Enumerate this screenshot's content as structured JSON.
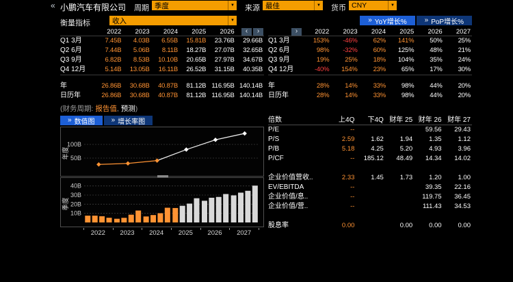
{
  "icons": {
    "back": "«",
    "dropdown_arrow": "▼",
    "chevron_left": "‹",
    "chevron_right": "›",
    "double_chevron": "»"
  },
  "colors": {
    "actual": "#ff9333",
    "negative": "#ff4040",
    "estimate": "#ffffff",
    "amber": "#f59d00",
    "blue_active": "#1d5fd6",
    "blue_inactive": "#0e3677",
    "nav_button_bg": "#3c4f63"
  },
  "header": {
    "company": "小鹏汽车有限公司",
    "period_label": "周期",
    "period_value": "季度",
    "source_label": "来源",
    "source_value": "最佳",
    "currency_label": "货币",
    "currency_value": "CNY"
  },
  "measure": {
    "label": "衡量指标",
    "value": "收入"
  },
  "growth_buttons": {
    "yoy": "YoY增长%",
    "pop": "PoP增长%"
  },
  "years": [
    "2022",
    "2023",
    "2024",
    "2025",
    "2026",
    "2027"
  ],
  "values_table": {
    "rows": [
      {
        "label": "Q1 3月",
        "group": "q",
        "actuals": 4,
        "values": [
          "7.45B",
          "4.03B",
          "6.55B",
          "15.81B",
          "23.76B",
          "29.66B"
        ]
      },
      {
        "label": "Q2 6月",
        "group": "q",
        "actuals": 3,
        "values": [
          "7.44B",
          "5.06B",
          "8.11B",
          "18.27B",
          "27.07B",
          "32.65B"
        ]
      },
      {
        "label": "Q3 9月",
        "group": "q",
        "actuals": 3,
        "values": [
          "6.82B",
          "8.53B",
          "10.10B",
          "20.65B",
          "27.97B",
          "34.67B"
        ]
      },
      {
        "label": "Q4 12月",
        "group": "q",
        "actuals": 3,
        "values": [
          "5.14B",
          "13.05B",
          "16.11B",
          "26.52B",
          "31.15B",
          "40.35B"
        ]
      },
      {
        "label": "年",
        "group": "a",
        "actuals": 3,
        "values": [
          "26.86B",
          "30.68B",
          "40.87B",
          "81.12B",
          "116.95B",
          "140.14B"
        ]
      },
      {
        "label": "日历年",
        "group": "a",
        "actuals": 3,
        "values": [
          "26.86B",
          "30.68B",
          "40.87B",
          "81.12B",
          "116.95B",
          "140.14B"
        ]
      }
    ]
  },
  "growth_table": {
    "rows": [
      {
        "label": "Q1 3月",
        "group": "q",
        "actuals": 4,
        "values": [
          "153%",
          "-46%",
          "62%",
          "141%",
          "50%",
          "25%"
        ]
      },
      {
        "label": "Q2 6月",
        "group": "q",
        "actuals": 3,
        "values": [
          "98%",
          "-32%",
          "60%",
          "125%",
          "48%",
          "21%"
        ]
      },
      {
        "label": "Q3 9月",
        "group": "q",
        "actuals": 3,
        "values": [
          "19%",
          "25%",
          "18%",
          "104%",
          "35%",
          "24%"
        ]
      },
      {
        "label": "Q4 12月",
        "group": "q",
        "actuals": 3,
        "values": [
          "-40%",
          "154%",
          "23%",
          "65%",
          "17%",
          "30%"
        ]
      },
      {
        "label": "年",
        "group": "a",
        "actuals": 3,
        "values": [
          "28%",
          "14%",
          "33%",
          "98%",
          "44%",
          "20%"
        ]
      },
      {
        "label": "日历年",
        "group": "a",
        "actuals": 3,
        "values": [
          "28%",
          "14%",
          "33%",
          "98%",
          "44%",
          "20%"
        ]
      }
    ]
  },
  "fiscal_note": {
    "prefix": "(财务周期:",
    "reported": "报告值",
    "separator": ",",
    "estimate": "预测",
    "suffix": ")"
  },
  "chart_tabs": {
    "values": "数值图",
    "growth": "增长率图"
  },
  "chart_data": [
    {
      "type": "line",
      "panel": "annual",
      "ylabel": "年度",
      "series_name": "收入",
      "x": [
        "2022",
        "2023",
        "2024",
        "2025",
        "2026",
        "2027"
      ],
      "values_B": [
        26.86,
        30.68,
        40.87,
        81.12,
        116.95,
        140.14
      ],
      "actual_count": 3,
      "yticks_B": [
        50,
        100
      ],
      "ylim_B": [
        0,
        150
      ]
    },
    {
      "type": "bar",
      "panel": "quarterly",
      "ylabel": "季度",
      "series_name": "收入",
      "years": [
        "2022",
        "2023",
        "2024",
        "2025",
        "2026",
        "2027"
      ],
      "quarters_per_year": 4,
      "values_B": [
        7.45,
        7.44,
        6.82,
        5.14,
        4.03,
        5.06,
        8.53,
        13.05,
        6.55,
        8.11,
        10.1,
        16.11,
        15.81,
        18.27,
        20.65,
        26.52,
        23.76,
        27.07,
        27.97,
        31.15,
        29.66,
        32.65,
        34.67,
        40.35
      ],
      "actual_count": 13,
      "yticks_B": [
        10,
        20,
        30,
        40
      ],
      "ylim_B": [
        0,
        45
      ]
    }
  ],
  "multiples": {
    "headers": [
      "倍数",
      "上4Q",
      "下4Q",
      "财年 25",
      "财年 26",
      "财年 27"
    ],
    "rows": [
      {
        "label": "P/E",
        "values": [
          "--",
          "",
          "",
          "59.56",
          "29.43"
        ]
      },
      {
        "label": "P/S",
        "values": [
          "2.59",
          "1.62",
          "1.94",
          "1.35",
          "1.12"
        ]
      },
      {
        "label": "P/B",
        "values": [
          "5.18",
          "4.25",
          "5.20",
          "4.93",
          "3.96"
        ]
      },
      {
        "label": "P/CF",
        "values": [
          "--",
          "185.12",
          "48.49",
          "14.34",
          "14.02"
        ]
      },
      {
        "label": "",
        "values": [
          "",
          "",
          "",
          "",
          ""
        ]
      },
      {
        "label": "企业价值营收..",
        "values": [
          "2.33",
          "1.45",
          "1.73",
          "1.20",
          "1.00"
        ]
      },
      {
        "label": "EV/EBITDA",
        "values": [
          "--",
          "",
          "",
          "39.35",
          "22.16"
        ]
      },
      {
        "label": "企业价值/息..",
        "values": [
          "--",
          "",
          "",
          "119.75",
          "36.45"
        ]
      },
      {
        "label": "企业价值/营..",
        "values": [
          "--",
          "",
          "",
          "111.43",
          "34.53"
        ]
      },
      {
        "label": "",
        "values": [
          "",
          "",
          "",
          "",
          ""
        ]
      },
      {
        "label": "股息率",
        "values": [
          "0.00",
          "",
          "0.00",
          "0.00",
          "0.00"
        ]
      }
    ]
  }
}
